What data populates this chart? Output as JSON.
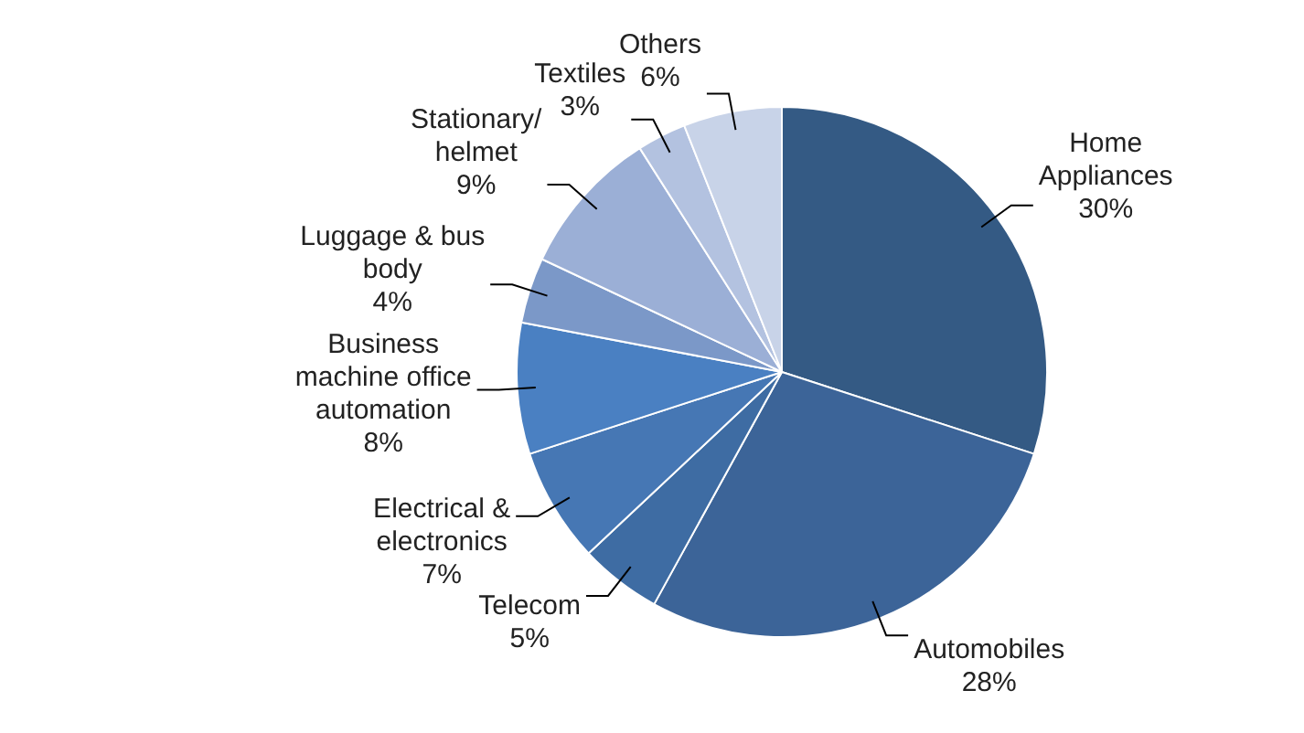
{
  "chart_data": {
    "type": "pie",
    "categories": [
      "Home Appliances",
      "Automobiles",
      "Telecom",
      "Electrical & electronics",
      "Business machine office automation",
      "Luggage & bus body",
      "Stationary/ helmet",
      "Textiles",
      "Others"
    ],
    "values": [
      30,
      28,
      5,
      7,
      8,
      4,
      9,
      3,
      6
    ],
    "value_labels": [
      "30%",
      "28%",
      "5%",
      "7%",
      "8%",
      "4%",
      "9%",
      "3%",
      "6%"
    ],
    "colors": [
      "#345a84",
      "#3c6498",
      "#3e6ca3",
      "#4677b4",
      "#4a80c2",
      "#7b98c8",
      "#9bafd6",
      "#b3c2e0",
      "#c8d3e8"
    ],
    "legend": false
  }
}
